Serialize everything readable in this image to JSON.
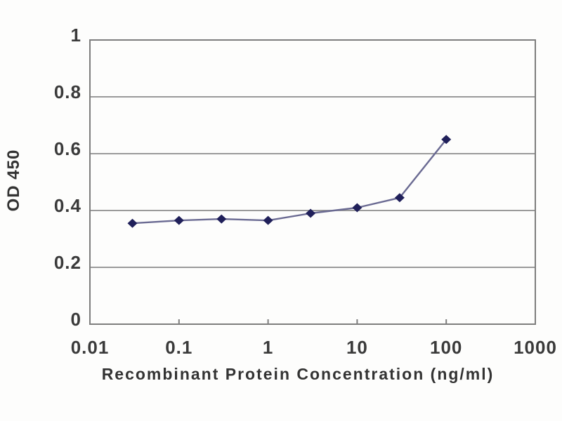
{
  "figure": {
    "description": "ELISA titration line chart, OD 450 versus recombinant protein concentration on a logarithmic x-axis",
    "background_color": "#fdfdfc"
  },
  "chart_data": {
    "type": "line",
    "title": "",
    "xlabel": "Recombinant Protein Concentration (ng/ml)",
    "ylabel": "OD 450",
    "x_scale": "log",
    "y_scale": "linear",
    "xlim": [
      0.01,
      1000
    ],
    "ylim": [
      0,
      1
    ],
    "x_ticks": [
      0.01,
      0.1,
      1,
      10,
      100,
      1000
    ],
    "x_tick_labels": [
      "0.01",
      "0.1",
      "1",
      "10",
      "100",
      "1000"
    ],
    "y_ticks": [
      0,
      0.2,
      0.4,
      0.6,
      0.8,
      1
    ],
    "y_tick_labels": [
      "0",
      "0.2",
      "0.4",
      "0.6",
      "0.8",
      "1"
    ],
    "grid": "horizontal",
    "legend_position": "none",
    "series": [
      {
        "name": "OD 450",
        "marker": "diamond",
        "x": [
          0.03,
          0.1,
          0.3,
          1,
          3,
          10,
          30,
          100
        ],
        "y": [
          0.355,
          0.365,
          0.37,
          0.365,
          0.39,
          0.41,
          0.445,
          0.65
        ]
      }
    ],
    "colors": {
      "marker": "#20205a",
      "line": "#6a6a92",
      "grid": "#8c8c8c",
      "frame": "#7d7d7d",
      "text": "#3a3a3a"
    }
  }
}
